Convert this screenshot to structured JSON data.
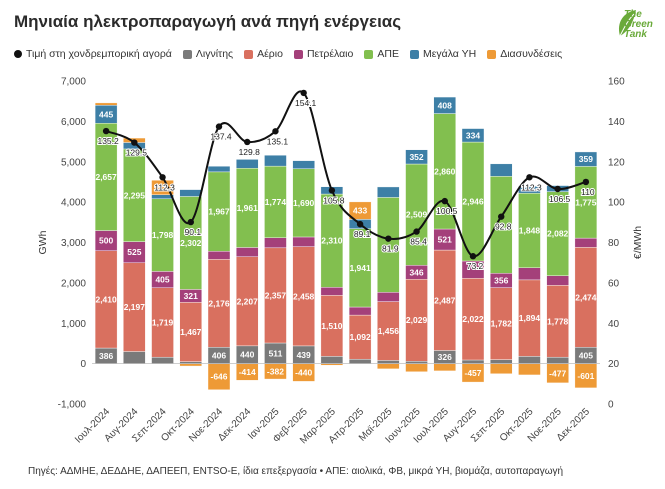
{
  "title": "Μηνιαία ηλεκτροπαραγωγή ανά πηγή ενέργειας",
  "logo": {
    "text": "The Green Tank"
  },
  "source": "Πηγές: ΑΔΜΗΕ, ΔΕΔΔΗΕ, ΔΑΠΕΕΠ, ENTSO-E, ίδια επεξεργασία • ΑΠΕ: αιολικά, ΦΒ, μικρά ΥΗ, βιομάζα, αυτοπαραγωγή",
  "legend": [
    {
      "label": "Τιμή στη χονδρεμπορική αγορά",
      "kind": "dot",
      "color": "#111111"
    },
    {
      "label": "Λιγνίτης",
      "kind": "box",
      "color": "#7a7a7a"
    },
    {
      "label": "Αέριο",
      "kind": "box",
      "color": "#d9705f"
    },
    {
      "label": "Πετρέλαιο",
      "kind": "box",
      "color": "#a4407a"
    },
    {
      "label": "ΑΠΕ",
      "kind": "box",
      "color": "#82bf4f"
    },
    {
      "label": "Μεγάλα ΥΗ",
      "kind": "box",
      "color": "#3d7fa6"
    },
    {
      "label": "Διασυνδέσεις",
      "kind": "box",
      "color": "#ee9a36"
    }
  ],
  "chart_data": {
    "type": "bar",
    "stacked": true,
    "categories": [
      "Ιουλ-2024",
      "Αυγ-2024",
      "Σεπ-2024",
      "Οκτ-2024",
      "Νοε-2024",
      "Δεκ-2024",
      "Ιαν-2025",
      "Φεβ-2025",
      "Μαρ-2025",
      "Απρ-2025",
      "Μαϊ-2025",
      "Ιουν-2025",
      "Ιουλ-2025",
      "Αυγ-2025",
      "Σεπ-2025",
      "Οκτ-2025",
      "Νοε-2025",
      "Δεκ-2025"
    ],
    "ylabel": "GWh",
    "y2label": "€/MWh",
    "ylim": [
      -1000,
      7000
    ],
    "y2lim": [
      0,
      160
    ],
    "yticks": [
      "-1,000",
      "0",
      "1,000",
      "2,000",
      "3,000",
      "4,000",
      "5,000",
      "6,000",
      "7,000"
    ],
    "y2ticks": [
      "0",
      "20",
      "40",
      "60",
      "80",
      "100",
      "120",
      "140",
      "160"
    ],
    "series": [
      {
        "name": "Λιγνίτης",
        "color": "#7a7a7a",
        "values": [
          386,
          300,
          160,
          50,
          406,
          440,
          511,
          439,
          180,
          110,
          80,
          60,
          326,
          90,
          100,
          180,
          160,
          405
        ],
        "labels": [
          "386",
          "",
          "",
          "",
          "406",
          "440",
          "511",
          "439",
          "",
          "",
          "",
          "",
          "326",
          "",
          "",
          "",
          "",
          "405"
        ]
      },
      {
        "name": "Αέριο",
        "color": "#d9705f",
        "values": [
          2410,
          2197,
          1719,
          1467,
          2176,
          2207,
          2357,
          2458,
          1510,
          1092,
          1456,
          2029,
          2487,
          2022,
          1782,
          1894,
          1778,
          2474
        ],
        "labels": [
          "2,410",
          "2,197",
          "1,719",
          "1,467",
          "2,176",
          "2,207",
          "2,357",
          "2,458",
          "1,510",
          "1,092",
          "1,456",
          "2,029",
          "2,487",
          "2,022",
          "1,782",
          "1,894",
          "1,778",
          "2,474"
        ]
      },
      {
        "name": "Πετρέλαιο",
        "color": "#a4407a",
        "values": [
          500,
          525,
          405,
          321,
          200,
          230,
          250,
          240,
          200,
          200,
          230,
          346,
          521,
          430,
          356,
          300,
          240,
          230
        ],
        "labels": [
          "500",
          "525",
          "405",
          "321",
          "",
          "",
          "",
          "",
          "",
          "",
          "",
          "346",
          "521",
          "",
          "356",
          "",
          "",
          ""
        ]
      },
      {
        "name": "ΑΠΕ",
        "color": "#82bf4f",
        "values": [
          2657,
          2295,
          1798,
          2302,
          1967,
          1961,
          1774,
          1690,
          2310,
          1941,
          2350,
          2509,
          2860,
          2946,
          2400,
          1848,
          2082,
          1775
        ],
        "labels": [
          "2,657",
          "2,295",
          "1,798",
          "2,302",
          "1,967",
          "1,961",
          "1,774",
          "1,690",
          "2,310",
          "1,941",
          "",
          "2,509",
          "2,860",
          "2,946",
          "",
          "1,848",
          "2,082",
          "1,775"
        ]
      },
      {
        "name": "Μεγάλα ΥΗ",
        "color": "#3d7fa6",
        "values": [
          445,
          160,
          100,
          170,
          140,
          220,
          270,
          200,
          180,
          230,
          260,
          352,
          408,
          334,
          310,
          170,
          150,
          359
        ],
        "labels": [
          "445",
          "",
          "",
          "",
          "",
          "",
          "",
          "",
          "",
          "",
          "",
          "352",
          "408",
          "334",
          "",
          "",
          "",
          "359"
        ]
      },
      {
        "name": "Διασυνδέσεις",
        "color": "#ee9a36",
        "values": [
          60,
          110,
          360,
          -60,
          -646,
          -414,
          -382,
          -440,
          -40,
          433,
          -130,
          -200,
          -180,
          -457,
          -250,
          -280,
          -477,
          -601
        ],
        "labels": [
          "",
          "",
          "",
          "",
          "-646",
          "-414",
          "-382",
          "-440",
          "",
          "433",
          "",
          "",
          "",
          "-457",
          "",
          "",
          "-477",
          "-601"
        ]
      }
    ],
    "price": {
      "name": "Τιμή στη χονδρεμπορική αγορά",
      "color": "#111111",
      "values": [
        135.2,
        129.5,
        112.3,
        90.1,
        137.4,
        129.8,
        135.1,
        154.1,
        105.8,
        89.1,
        81.9,
        85.4,
        100.5,
        73.2,
        92.8,
        112.3,
        106.5,
        110
      ],
      "labels": [
        "135.2",
        "129.5",
        "112.3",
        "90.1",
        "137.4",
        "129.8",
        "135.1",
        "154.1",
        "105.8",
        "89.1",
        "81.9",
        "85.4",
        "100.5",
        "73.2",
        "92.8",
        "112.3",
        "106.5",
        "110"
      ]
    }
  }
}
